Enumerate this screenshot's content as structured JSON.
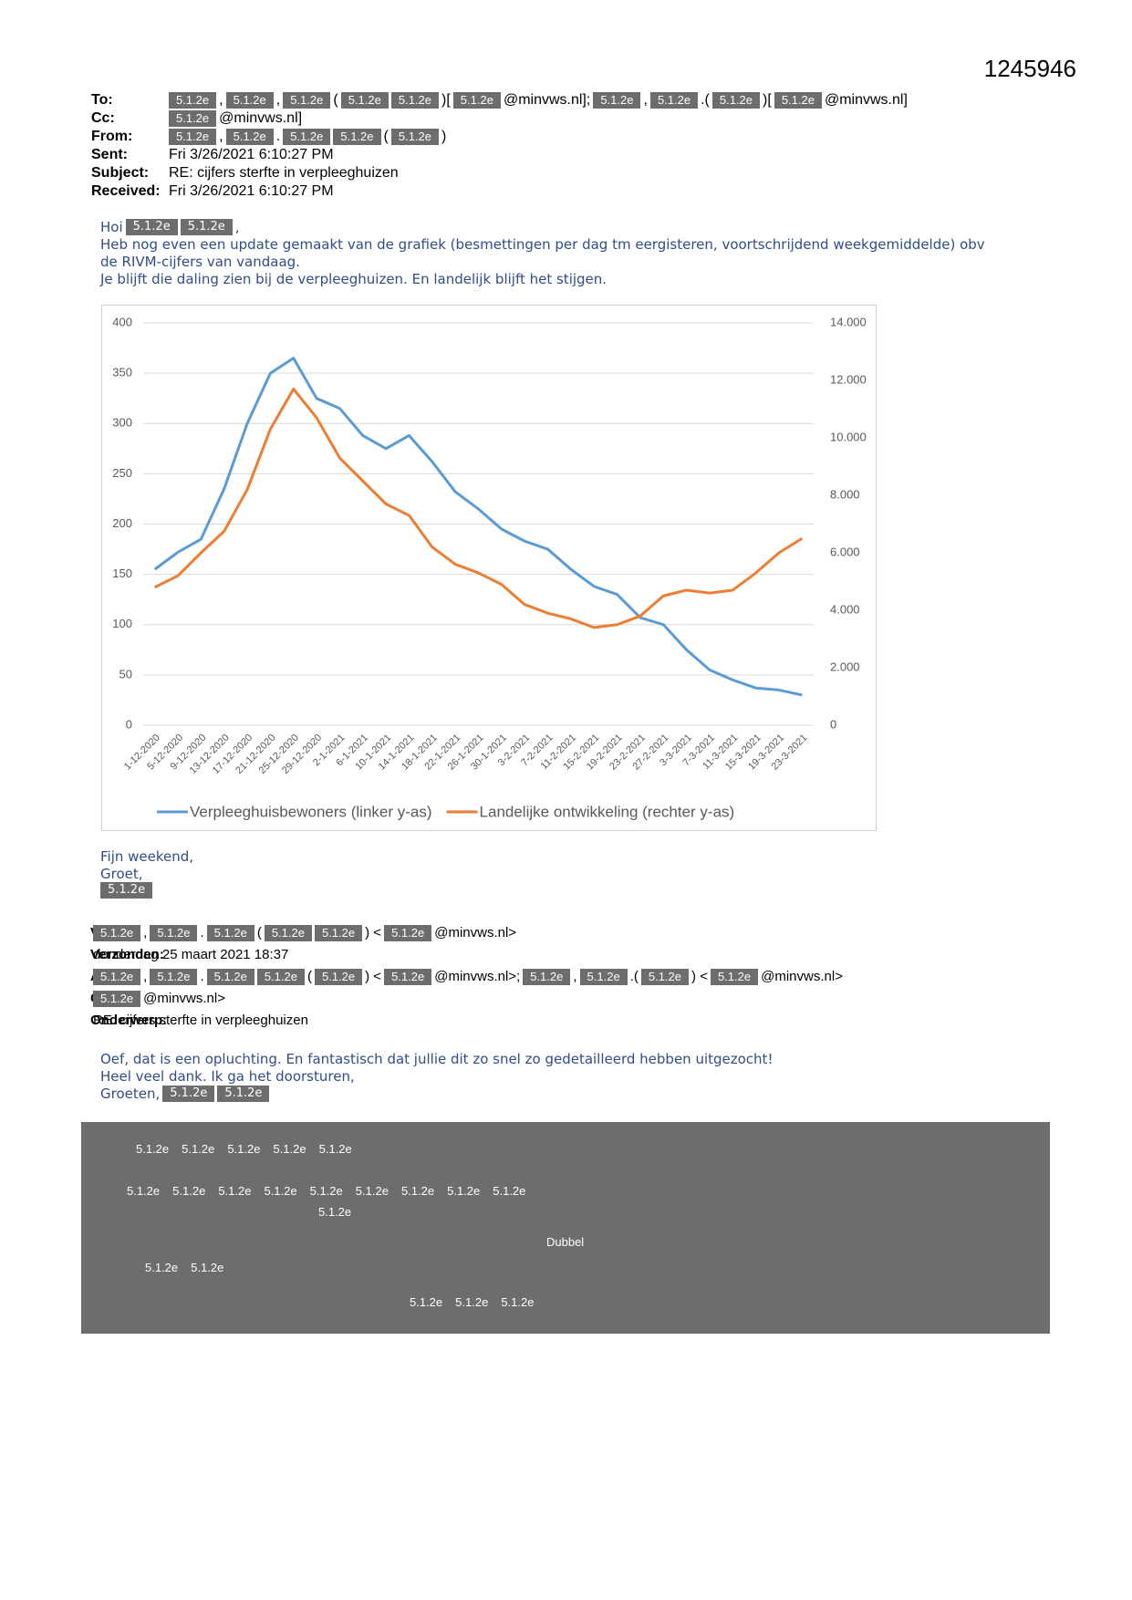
{
  "doc_number": "1245946",
  "header1": [
    {
      "label": "To:",
      "parts": [
        {
          "text": "5.1.2e",
          "redacted": true
        },
        ",",
        {
          "text": "5.1.2e",
          "redacted": true
        },
        ",",
        {
          "text": "5.1.2e",
          "redacted": true
        },
        "(",
        {
          "text": "5.1.2e",
          "redacted": true
        },
        {
          "text": "5.1.2e",
          "redacted": true
        },
        ")[",
        {
          "text": "5.1.2e",
          "redacted": true
        },
        "@minvws.nl];",
        {
          "text": "5.1.2e",
          "redacted": true
        },
        ",",
        {
          "text": "5.1.2e",
          "redacted": true
        },
        ".(",
        {
          "text": "5.1.2e",
          "redacted": true
        },
        ")[",
        {
          "text": "5.1.2e",
          "redacted": true
        },
        "@minvws.nl]"
      ]
    },
    {
      "label": "Cc:",
      "parts": [
        {
          "text": "5.1.2e",
          "redacted": true
        },
        "@minvws.nl]"
      ]
    },
    {
      "label": "From:",
      "parts": [
        {
          "text": "5.1.2e",
          "redacted": true
        },
        ",",
        {
          "text": "5.1.2e",
          "redacted": true
        },
        ".",
        {
          "text": "5.1.2e",
          "redacted": true
        },
        {
          "text": "5.1.2e",
          "redacted": true
        },
        "(",
        {
          "text": "5.1.2e",
          "redacted": true
        },
        ")"
      ]
    },
    {
      "label": "Sent:",
      "parts": [
        "Fri 3/26/2021 6:10:27 PM"
      ]
    },
    {
      "label": "Subject:",
      "parts": [
        "RE: cijfers sterfte in verpleeghuizen"
      ]
    },
    {
      "label": "Received:",
      "parts": [
        "Fri 3/26/2021 6:10:27 PM"
      ]
    }
  ],
  "body1": [
    [
      "Hoi",
      {
        "text": "5.1.2e",
        "redacted": true
      },
      {
        "text": "5.1.2e",
        "redacted": true
      },
      ","
    ],
    [
      "Heb nog even een update gemaakt van de grafiek (besmettingen per dag tm eergisteren, voortschrijdend weekgemiddelde) obv"
    ],
    [
      "de RIVM-cijfers van vandaag."
    ],
    [
      "Je blijft die daling zien bij de verpleeghuizen. En landelijk blijft het stijgen."
    ]
  ],
  "chart_data": {
    "type": "line",
    "categories": [
      "1-12-2020",
      "5-12-2020",
      "9-12-2020",
      "13-12-2020",
      "17-12-2020",
      "21-12-2020",
      "25-12-2020",
      "29-12-2020",
      "2-1-2021",
      "6-1-2021",
      "10-1-2021",
      "14-1-2021",
      "18-1-2021",
      "22-1-2021",
      "26-1-2021",
      "30-1-2021",
      "3-2-2021",
      "7-2-2021",
      "11-2-2021",
      "15-2-2021",
      "19-2-2021",
      "23-2-2021",
      "27-2-2021",
      "3-3-2021",
      "7-3-2021",
      "11-3-2021",
      "15-3-2021",
      "19-3-2021",
      "23-3-2021"
    ],
    "series": [
      {
        "name": "Verpleeghuisbewoners (linker y-as)",
        "color": "#5b9bd5",
        "values": [
          155,
          172,
          185,
          235,
          300,
          350,
          365,
          325,
          315,
          288,
          275,
          288,
          262,
          232,
          215,
          195,
          183,
          175,
          155,
          138,
          130,
          107,
          100,
          75,
          55,
          45,
          37,
          35,
          30
        ]
      },
      {
        "name": "Landelijke ontwikkeling (rechter y-as)",
        "color": "#ed7d31",
        "axis": "y2",
        "values": [
          4800,
          5200,
          6000,
          6750,
          8200,
          10300,
          11700,
          10700,
          9300,
          8500,
          7700,
          7300,
          6200,
          5600,
          5300,
          4900,
          4200,
          3900,
          3700,
          3400,
          3500,
          3800,
          4500,
          4700,
          4600,
          4700,
          5300,
          6000,
          6500
        ]
      }
    ],
    "ylim": [
      0,
      400
    ],
    "yticks": [
      0,
      50,
      100,
      150,
      200,
      250,
      300,
      350,
      400
    ],
    "y2lim": [
      0,
      14000
    ],
    "y2ticks": [
      0,
      {
        "value": 2000,
        "label": "2.000"
      },
      {
        "value": 4000,
        "label": "4.000"
      },
      {
        "value": 6000,
        "label": "6.000"
      },
      {
        "value": 8000,
        "label": "8.000"
      },
      {
        "value": 10000,
        "label": "10.000"
      },
      {
        "value": 12000,
        "label": "12.000"
      },
      {
        "value": 14000,
        "label": "14.000"
      }
    ],
    "grid": true,
    "legend": "bottom"
  },
  "body2": [
    [
      "Fijn weekend,"
    ],
    [
      "Groet,"
    ],
    [
      {
        "text": "5.1.2e",
        "redacted": true
      }
    ]
  ],
  "header2": [
    {
      "label": "Van:",
      "parts": [
        {
          "text": "5.1.2e",
          "redacted": true
        },
        ",",
        {
          "text": "5.1.2e",
          "redacted": true
        },
        ".",
        {
          "text": "5.1.2e",
          "redacted": true
        },
        "(",
        {
          "text": "5.1.2e",
          "redacted": true
        },
        {
          "text": "5.1.2e",
          "redacted": true
        },
        ") <",
        {
          "text": "5.1.2e",
          "redacted": true
        },
        "@minvws.nl>"
      ]
    },
    {
      "label": "Verzonden:",
      "parts": [
        "donderdag 25 maart 2021 18:37"
      ]
    },
    {
      "label": "Aan:",
      "parts": [
        {
          "text": "5.1.2e",
          "redacted": true
        },
        ",",
        {
          "text": "5.1.2e",
          "redacted": true
        },
        ".",
        {
          "text": "5.1.2e",
          "redacted": true
        },
        {
          "text": "5.1.2e",
          "redacted": true
        },
        "(",
        {
          "text": "5.1.2e",
          "redacted": true
        },
        ") <",
        {
          "text": "5.1.2e",
          "redacted": true
        },
        "@minvws.nl>;",
        {
          "text": "5.1.2e",
          "redacted": true
        },
        ",",
        {
          "text": "5.1.2e",
          "redacted": true
        },
        ".(",
        {
          "text": "5.1.2e",
          "redacted": true
        },
        ") <",
        {
          "text": "5.1.2e",
          "redacted": true
        },
        "@minvws.nl>"
      ]
    },
    {
      "label": "CC:",
      "parts": [
        {
          "text": "5.1.2e",
          "redacted": true
        },
        "@minvws.nl>"
      ]
    },
    {
      "label": "Onderwerp:",
      "parts": [
        "RE: cijfers sterfte in verpleeghuizen"
      ]
    }
  ],
  "body3": [
    [
      "Oef, dat is een opluchting. En fantastisch dat jullie dit zo snel zo gedetailleerd hebben uitgezocht!"
    ],
    [
      "Heel veel dank. Ik ga het doorsturen,"
    ],
    [
      "Groeten,",
      {
        "text": "5.1.2e",
        "redacted": true
      },
      {
        "text": "5.1.2e",
        "redacted": true
      }
    ]
  ],
  "redacted_block": [
    [
      "5.1.2e",
      "5.1.2e",
      "5.1.2e",
      "5.1.2e",
      "5.1.2e"
    ],
    [
      "5.1.2e",
      "5.1.2e",
      "5.1.2e",
      "5.1.2e",
      "5.1.2e",
      "5.1.2e",
      "5.1.2e",
      "5.1.2e",
      "5.1.2e"
    ],
    [
      "5.1.2e"
    ],
    [
      "Dubbel"
    ],
    [
      "5.1.2e",
      "5.1.2e"
    ],
    [
      "5.1.2e",
      "5.1.2e",
      "5.1.2e"
    ]
  ]
}
